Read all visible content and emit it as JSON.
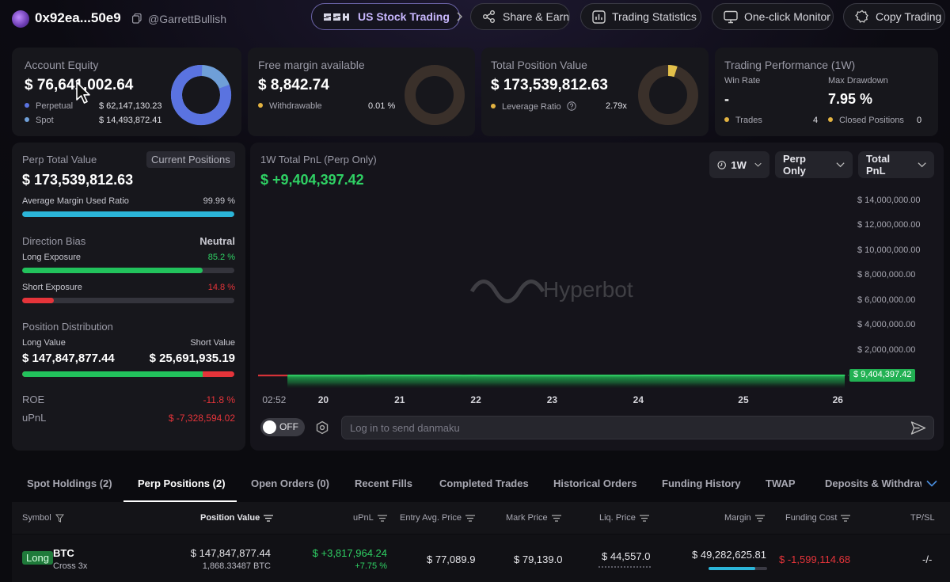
{
  "header": {
    "address": "0x92ea...50e9",
    "username": "@GarrettBullish",
    "buttons": {
      "us_stock": "US Stock Trading",
      "share": "Share & Earn",
      "stats": "Trading Statistics",
      "monitor": "One-click Monitor",
      "copy": "Copy Trading"
    }
  },
  "account_equity": {
    "title": "Account Equity",
    "value": "$ 76,641,002.64",
    "perpetual_label": "Perpetual",
    "perpetual_value": "$ 62,147,130.23",
    "spot_label": "Spot",
    "spot_value": "$ 14,493,872.41",
    "perp_share": 0.81,
    "colors": {
      "perpetual": "#5a73e0",
      "spot": "#6f9fd8"
    }
  },
  "free_margin": {
    "title": "Free margin available",
    "value": "$ 8,842.74",
    "withdrawable_label": "Withdrawable",
    "withdrawable_value": "0.01 %",
    "share": 0.0001
  },
  "position_value": {
    "title": "Total Position Value",
    "value": "$ 173,539,812.63",
    "leverage_label": "Leverage Ratio",
    "leverage_value": "2.79x",
    "share": 0.05
  },
  "performance": {
    "title": "Trading Performance (1W)",
    "win_rate_label": "Win Rate",
    "win_rate_value": "-",
    "drawdown_label": "Max Drawdown",
    "drawdown_value": "7.95 %",
    "trades_label": "Trades",
    "trades_value": "4",
    "closed_label": "Closed Positions",
    "closed_value": "0"
  },
  "perp_panel": {
    "title": "Perp Total Value",
    "current_positions": "Current Positions",
    "value": "$ 173,539,812.63",
    "margin_ratio_label": "Average Margin Used Ratio",
    "margin_ratio_value": "99.99 %",
    "margin_ratio": 0.9999,
    "bias_label": "Direction Bias",
    "bias_value": "Neutral",
    "long_exposure_label": "Long Exposure",
    "long_exposure_value": "85.2 %",
    "long_exposure": 0.852,
    "short_exposure_label": "Short Exposure",
    "short_exposure_value": "14.8 %",
    "short_exposure": 0.148,
    "distribution_label": "Position Distribution",
    "long_value_label": "Long Value",
    "short_value_label": "Short Value",
    "long_value": "$ 147,847,877.44",
    "short_value": "$ 25,691,935.19",
    "long_share": 0.852,
    "roe_label": "ROE",
    "roe_value": "-11.8 %",
    "upnl_label": "uPnL",
    "upnl_value": "$ -7,328,594.02"
  },
  "pnl_chart": {
    "title": "1W Total PnL (Perp Only)",
    "value": "$ +9,404,397.42",
    "dropdowns": {
      "range": "1W",
      "scope": "Perp Only",
      "metric": "Total PnL"
    },
    "current_label": "$ 9,404,397.42",
    "watermark": "Hyperbot",
    "toggle_label": "OFF",
    "danmaku_placeholder": "Log in to send danmaku"
  },
  "chart_data": {
    "type": "area",
    "ylim": [
      -1000000,
      14500000
    ],
    "yticks": [
      "$ 14,000,000.00",
      "$ 12,000,000.00",
      "$ 10,000,000.00",
      "$ 8,000,000.00",
      "$ 6,000,000.00",
      "$ 4,000,000.00",
      "$ 2,000,000.00",
      "$ 0.00"
    ],
    "ytick_values": [
      14000000,
      12000000,
      10000000,
      8000000,
      6000000,
      4000000,
      2000000,
      0
    ],
    "xticks": [
      "02:52",
      "20",
      "21",
      "22",
      "23",
      "24",
      "25",
      "26"
    ],
    "x_range": [
      0,
      100
    ],
    "xtick_positions": [
      1.8,
      11.3,
      24.3,
      37.3,
      50.3,
      65.0,
      82.9,
      99.0
    ],
    "x": [
      0,
      2,
      5,
      7,
      9,
      10,
      11,
      13,
      14,
      15,
      16,
      17,
      18,
      19,
      21,
      23,
      25,
      27,
      28,
      30,
      32,
      34,
      35,
      37,
      38,
      39,
      40,
      41,
      42,
      43,
      44,
      45,
      47,
      48,
      50,
      52,
      53,
      55,
      57,
      59,
      60,
      62,
      64,
      66,
      68,
      70,
      72,
      73,
      75,
      77,
      78,
      80,
      82,
      84,
      85,
      87,
      88,
      90,
      92,
      94,
      96,
      98,
      100
    ],
    "y": [
      0,
      -200,
      -100,
      300,
      1600,
      3600,
      3600,
      4000,
      4200,
      4300,
      4900,
      5100,
      6500,
      7200,
      7800,
      8100,
      9500,
      10600,
      11200,
      11000,
      10100,
      7200,
      6600,
      7200,
      6800,
      6200,
      5500,
      5100,
      5800,
      6300,
      5100,
      4700,
      6000,
      5400,
      4900,
      5300,
      4600,
      4700,
      5100,
      5400,
      5400,
      5400,
      5700,
      7600,
      8200,
      7800,
      8600,
      9500,
      9100,
      9200,
      8900,
      9200,
      8800,
      7800,
      8300,
      8000,
      9200,
      9300,
      9100,
      9300,
      9000,
      9400,
      9404
    ]
  },
  "tabs": [
    "Spot Holdings (2)",
    "Perp Positions (2)",
    "Open Orders (0)",
    "Recent Fills",
    "Completed Trades",
    "Historical Orders",
    "Funding History",
    "TWAP",
    "Deposits & Withdraw"
  ],
  "table": {
    "headers": [
      "Symbol",
      "Position Value",
      "uPnL",
      "Entry Avg. Price",
      "Mark Price",
      "Liq. Price",
      "Margin",
      "Funding Cost",
      "TP/SL"
    ],
    "row": {
      "side": "Long",
      "symbol": "BTC",
      "mode": "Cross 3x",
      "position_value": "$ 147,847,877.44",
      "position_size": "1,868.33487 BTC",
      "upnl": "$ +3,817,964.24",
      "upnl_pct": "+7.75 %",
      "entry": "$ 77,089.9",
      "mark": "$ 79,139.0",
      "liq": "$ 44,557.0",
      "margin": "$ 49,282,625.81",
      "margin_ratio": 0.8,
      "funding": "$ -1,599,114.68",
      "tpsl": "-/-"
    }
  }
}
